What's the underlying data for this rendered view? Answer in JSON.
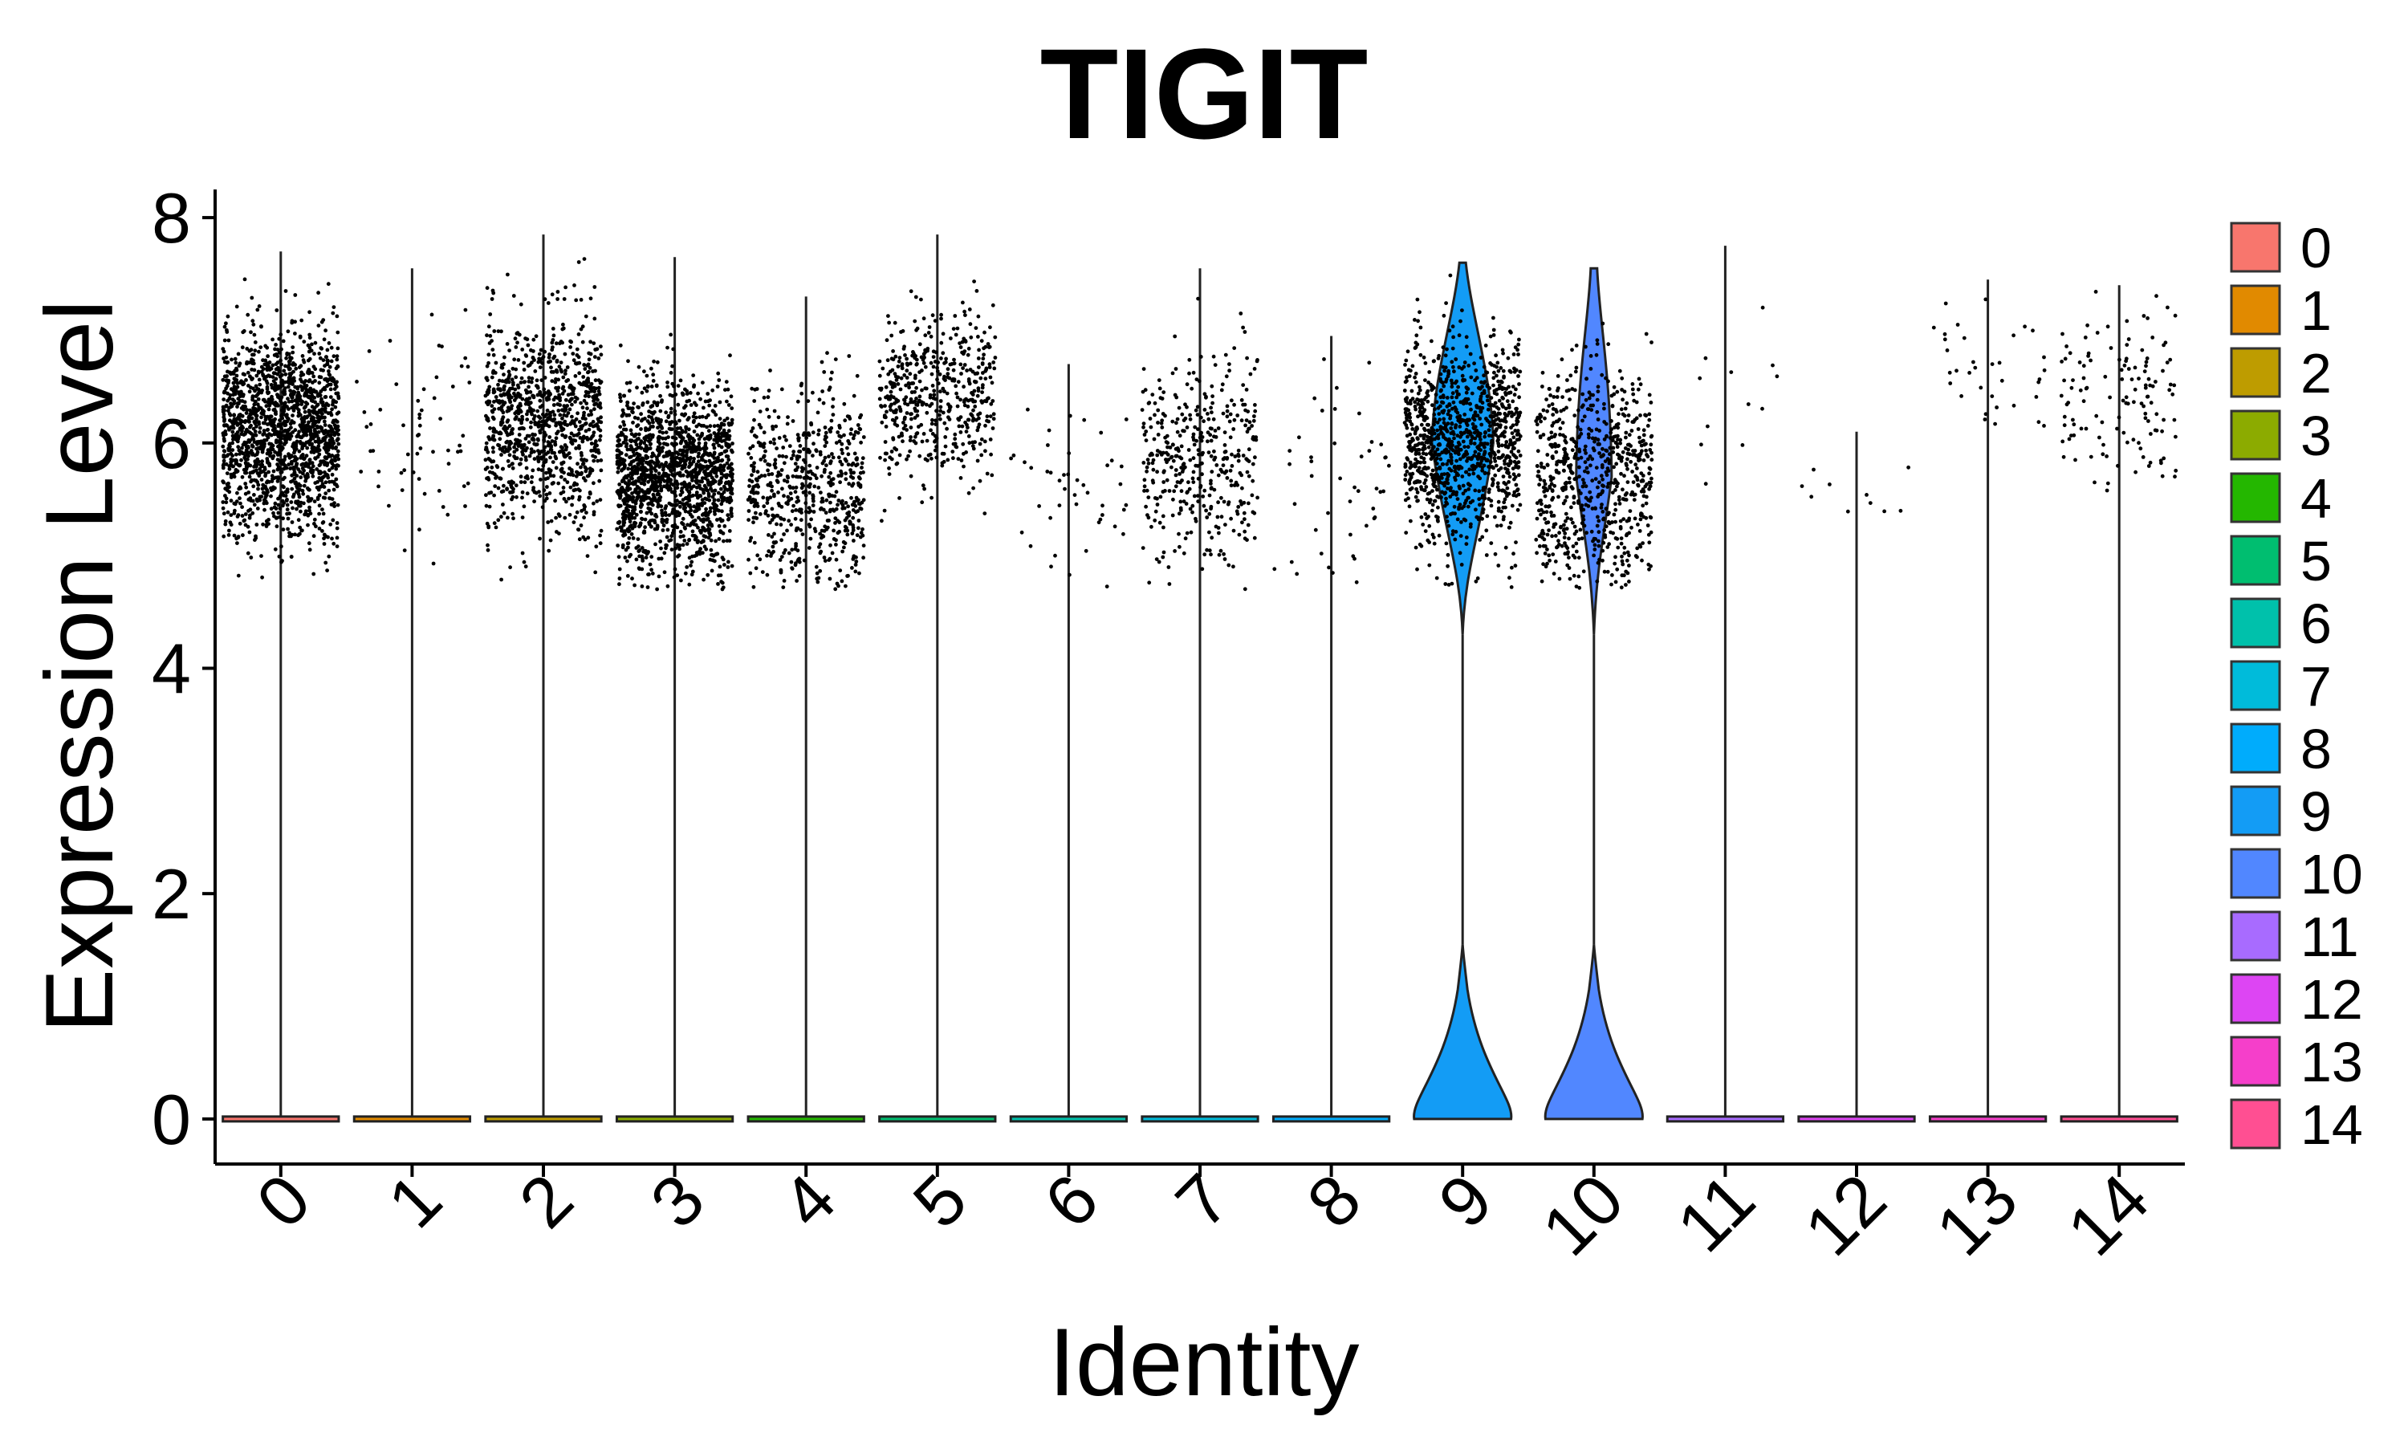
{
  "chart_data": {
    "type": "violin",
    "title": "TIGIT",
    "xlabel": "Identity",
    "ylabel": "Expression Level",
    "ylim": [
      -0.4,
      8.25
    ],
    "y_ticks": [
      0,
      2,
      4,
      6,
      8
    ],
    "grid": false,
    "legend_position": "right",
    "categories": [
      "0",
      "1",
      "2",
      "3",
      "4",
      "5",
      "6",
      "7",
      "8",
      "9",
      "10",
      "11",
      "12",
      "13",
      "14"
    ],
    "colors": [
      "#F8766D",
      "#E18A00",
      "#BE9C00",
      "#8CAB00",
      "#24B700",
      "#00BE70",
      "#00C1AB",
      "#00BBDA",
      "#00ACFC",
      "#139CF5",
      "#5187FF",
      "#A86BFF",
      "#DD45F3",
      "#F53FCA",
      "#FF4F92"
    ],
    "series": [
      {
        "name": "0",
        "max": 7.7,
        "expressed_center": 6.1,
        "expressed_spread": 0.45,
        "expressed_count": 1700,
        "violin_peak_width": 0
      },
      {
        "name": "1",
        "max": 7.55,
        "expressed_center": 6.15,
        "expressed_spread": 0.5,
        "expressed_count": 60,
        "violin_peak_width": 0
      },
      {
        "name": "2",
        "max": 7.85,
        "expressed_center": 6.2,
        "expressed_spread": 0.45,
        "expressed_count": 1000,
        "violin_peak_width": 0
      },
      {
        "name": "3",
        "max": 7.65,
        "expressed_center": 5.7,
        "expressed_spread": 0.4,
        "expressed_count": 1500,
        "violin_peak_width": 0
      },
      {
        "name": "4",
        "max": 7.3,
        "expressed_center": 5.6,
        "expressed_spread": 0.45,
        "expressed_count": 600,
        "violin_peak_width": 0
      },
      {
        "name": "5",
        "max": 7.85,
        "expressed_center": 6.4,
        "expressed_spread": 0.35,
        "expressed_count": 500,
        "violin_peak_width": 0
      },
      {
        "name": "6",
        "max": 6.7,
        "expressed_center": 5.6,
        "expressed_spread": 0.35,
        "expressed_count": 45,
        "violin_peak_width": 0
      },
      {
        "name": "7",
        "max": 7.55,
        "expressed_center": 5.9,
        "expressed_spread": 0.45,
        "expressed_count": 400,
        "violin_peak_width": 0
      },
      {
        "name": "8",
        "max": 6.95,
        "expressed_center": 5.7,
        "expressed_spread": 0.5,
        "expressed_count": 45,
        "violin_peak_width": 0
      },
      {
        "name": "9",
        "max": 7.6,
        "expressed_center": 6.0,
        "expressed_spread": 0.45,
        "expressed_count": 1100,
        "violin_peak_width": 0.5
      },
      {
        "name": "10",
        "max": 7.55,
        "expressed_center": 5.7,
        "expressed_spread": 0.5,
        "expressed_count": 700,
        "violin_peak_width": 0.5
      },
      {
        "name": "11",
        "max": 7.75,
        "expressed_center": 6.4,
        "expressed_spread": 0.5,
        "expressed_count": 12,
        "violin_peak_width": 0
      },
      {
        "name": "12",
        "max": 6.1,
        "expressed_center": 5.5,
        "expressed_spread": 0.2,
        "expressed_count": 10,
        "violin_peak_width": 0
      },
      {
        "name": "13",
        "max": 7.45,
        "expressed_center": 6.7,
        "expressed_spread": 0.3,
        "expressed_count": 35,
        "violin_peak_width": 0
      },
      {
        "name": "14",
        "max": 7.4,
        "expressed_center": 6.4,
        "expressed_spread": 0.4,
        "expressed_count": 130,
        "violin_peak_width": 0
      }
    ]
  }
}
